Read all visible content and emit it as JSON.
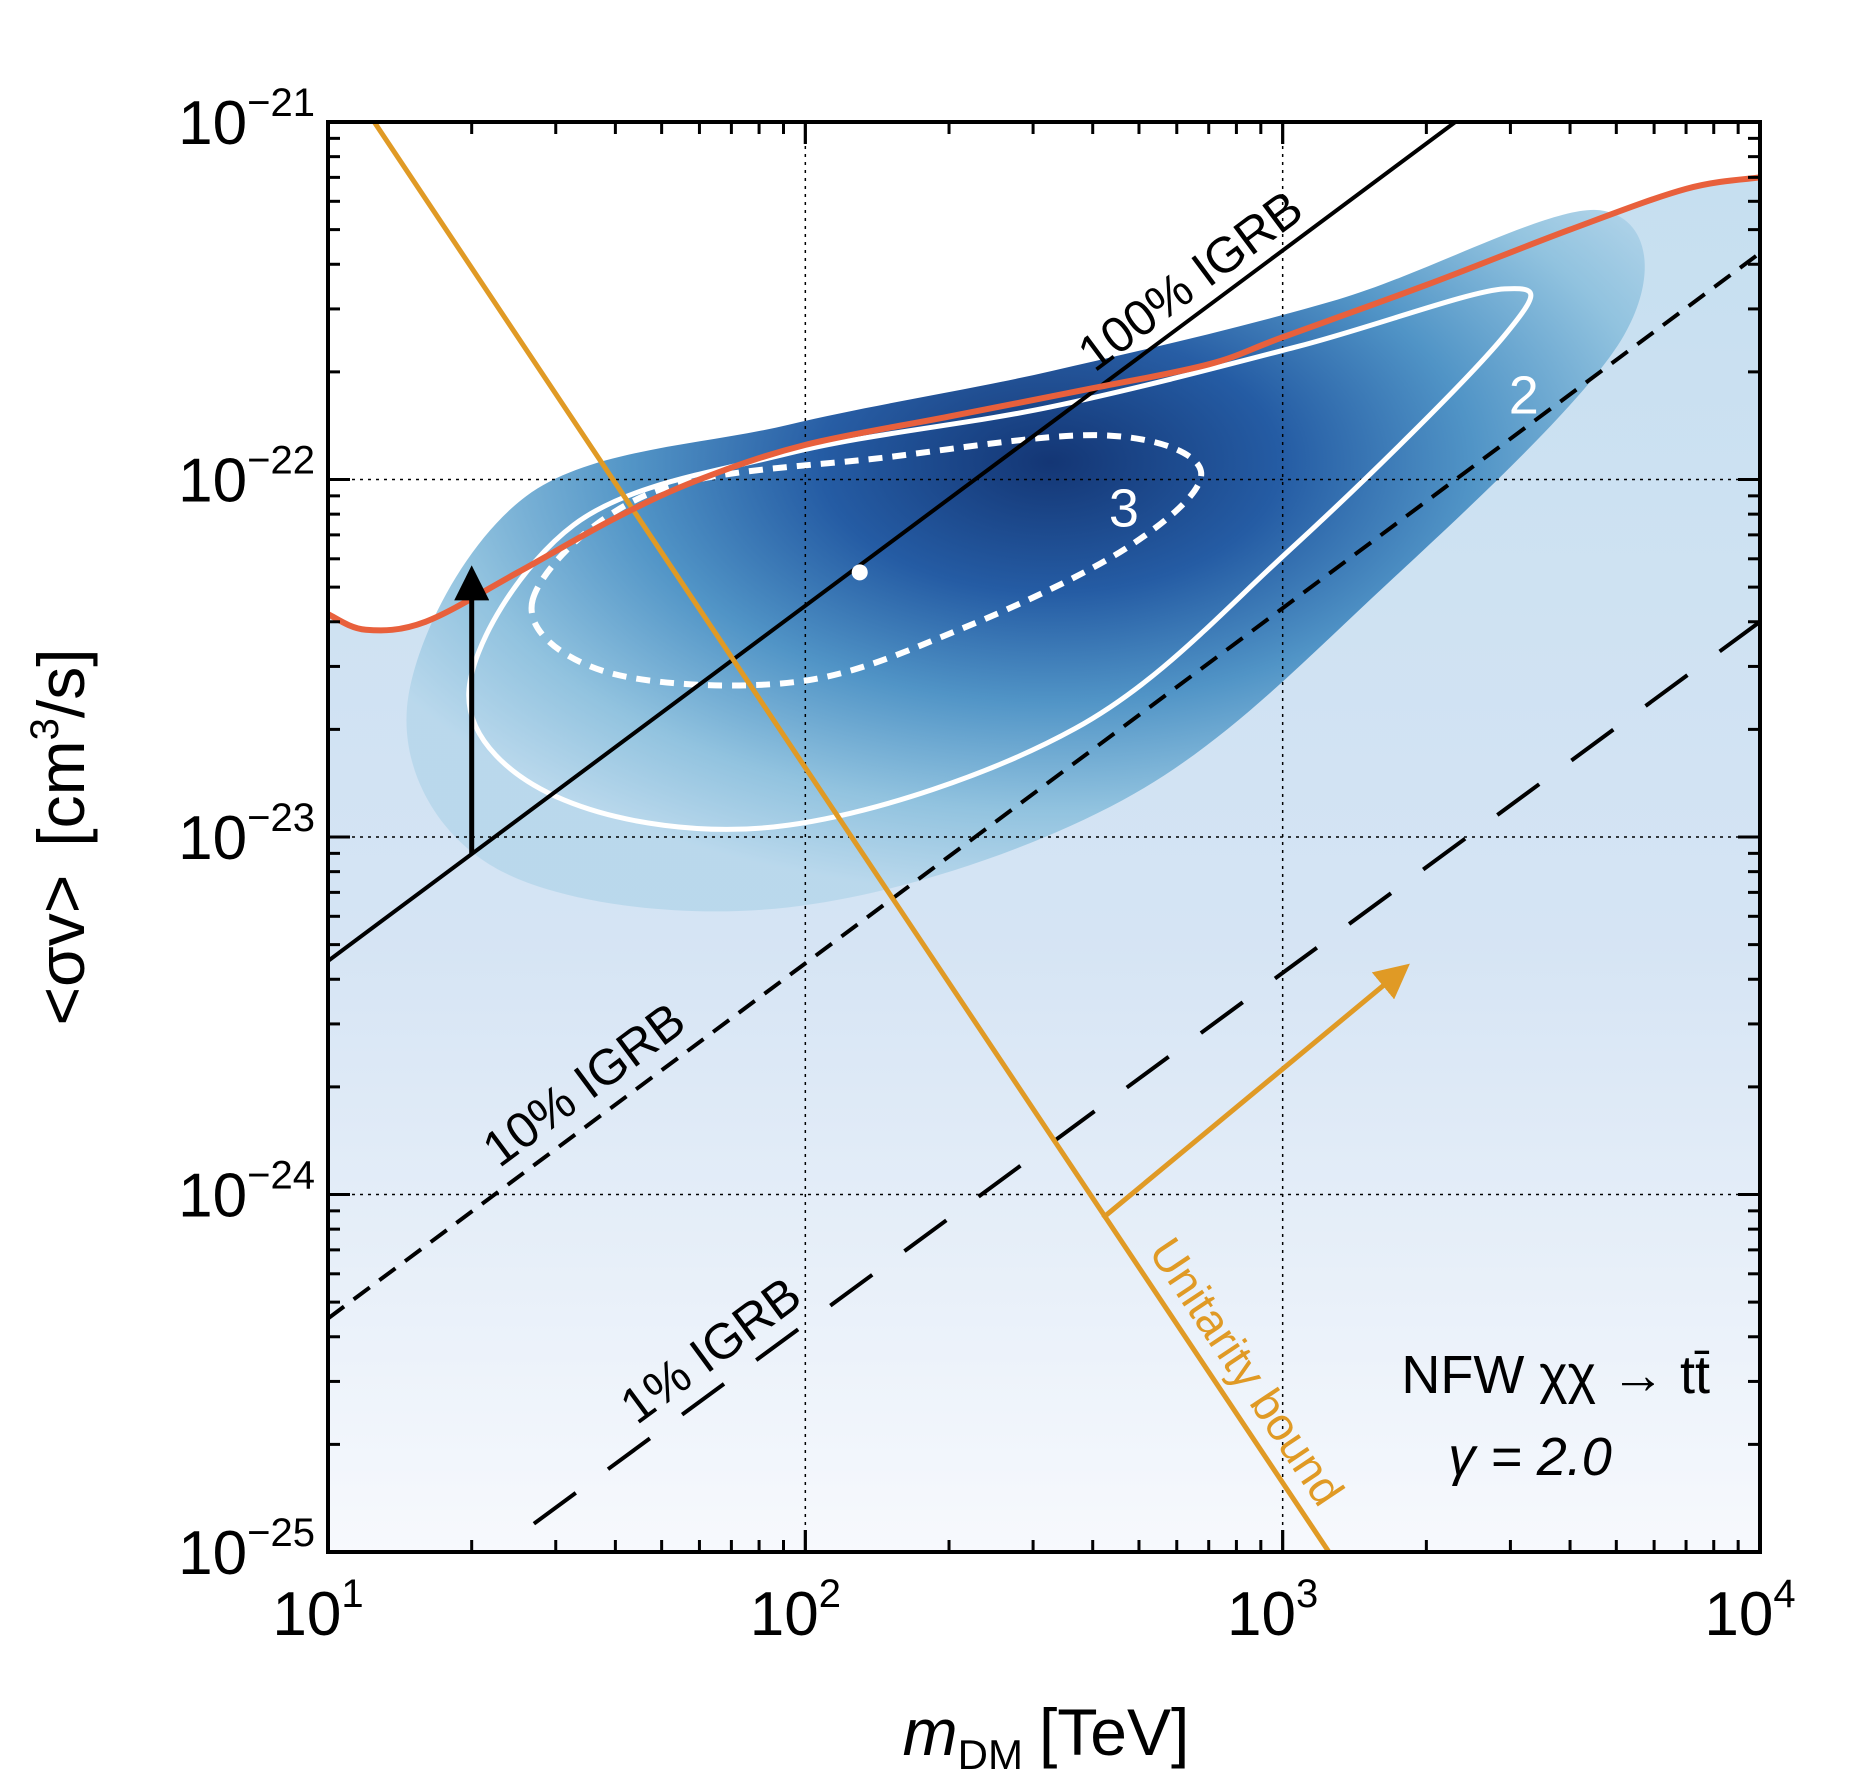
{
  "chart_data": {
    "type": "line",
    "title": "",
    "xlabel": "m",
    "xlabel_sub": "DM",
    "xlabel_unit": "[TeV]",
    "ylabel": "<σv>",
    "ylabel_unit_pre": "[cm",
    "ylabel_unit_sup": "3",
    "ylabel_unit_post": "/s]",
    "xscale": "log",
    "yscale": "log",
    "xlim": [
      10,
      10000
    ],
    "ylim": [
      1e-25,
      1e-21
    ],
    "x_ticks": [
      {
        "value": 10,
        "base": "10",
        "exp": "1"
      },
      {
        "value": 100,
        "base": "10",
        "exp": "2"
      },
      {
        "value": 1000,
        "base": "10",
        "exp": "3"
      },
      {
        "value": 10000,
        "base": "10",
        "exp": "4"
      }
    ],
    "y_ticks": [
      {
        "value": 1e-25,
        "base": "10",
        "exp": "−25"
      },
      {
        "value": 1e-24,
        "base": "10",
        "exp": "−24"
      },
      {
        "value": 1e-23,
        "base": "10",
        "exp": "−23"
      },
      {
        "value": 1e-22,
        "base": "10",
        "exp": "−22"
      },
      {
        "value": 1e-21,
        "base": "10",
        "exp": "−21"
      }
    ],
    "grid": "dotted at decades",
    "colors": {
      "orange_bound": "#e8603c",
      "unitarity": "#e09a25",
      "igrb": "#000000",
      "contour": "#ffffff",
      "fill_dark": "#0a2d6e",
      "fill_mid": "#7fb6d8",
      "fill_light": "#eef3fa"
    },
    "series": [
      {
        "name": "100% IGRB",
        "label": "100% IGRB",
        "style": "solid",
        "points": [
          [
            10,
            4.5e-24
          ],
          [
            2300,
            1e-21
          ]
        ]
      },
      {
        "name": "10% IGRB",
        "label": "10% IGRB",
        "style": "short-dash",
        "points": [
          [
            10,
            4.5e-25
          ],
          [
            10000,
            4.3e-22
          ]
        ]
      },
      {
        "name": "1% IGRB",
        "label": "1% IGRB",
        "style": "long-dash",
        "points": [
          [
            27,
            1.2e-25
          ],
          [
            10000,
            4e-23
          ]
        ]
      },
      {
        "name": "Unitarity bound",
        "label": "Unitarity bound",
        "style": "solid-orange",
        "points": [
          [
            12.5,
            1e-21
          ],
          [
            1250,
            1e-25
          ]
        ]
      },
      {
        "name": "Upper limit",
        "label": "",
        "style": "solid-red",
        "points": [
          [
            10,
            4.2e-23
          ],
          [
            12,
            3.8e-23
          ],
          [
            16,
            4e-23
          ],
          [
            25,
            5.5e-23
          ],
          [
            40,
            7.8e-23
          ],
          [
            60,
            1e-22
          ],
          [
            100,
            1.25e-22
          ],
          [
            200,
            1.5e-22
          ],
          [
            400,
            1.8e-22
          ],
          [
            700,
            2.1e-22
          ],
          [
            1000,
            2.5e-22
          ],
          [
            2000,
            3.5e-22
          ],
          [
            4000,
            5e-22
          ],
          [
            7000,
            6.5e-22
          ],
          [
            10000,
            7e-22
          ]
        ]
      }
    ],
    "contours": [
      {
        "label": "2",
        "style": "solid",
        "center": [
          260,
          4.5e-23
        ]
      },
      {
        "label": "3",
        "style": "dotted",
        "center": [
          190,
          5.8e-23
        ]
      }
    ],
    "best_fit": {
      "x": 130,
      "y": 5.5e-23
    },
    "arrows": [
      {
        "from": [
          20,
          9e-24
        ],
        "to": [
          20,
          5.5e-23
        ],
        "color": "#000000"
      },
      {
        "from": [
          420,
          8.6e-25
        ],
        "to": [
          1800,
          4.3e-24
        ],
        "color": "#e09a25"
      }
    ],
    "annotation": {
      "line1": "NFW χχ → tt̄",
      "line2": "γ = 2.0"
    }
  }
}
